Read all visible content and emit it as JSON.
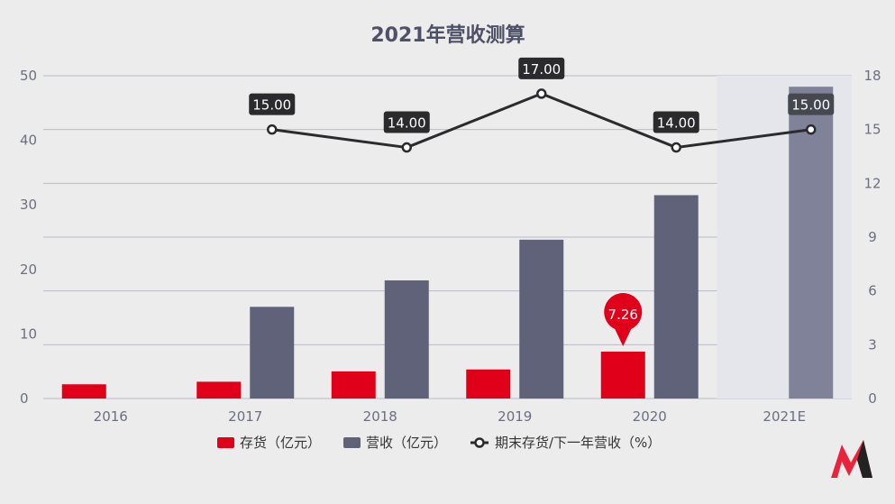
{
  "chart_data": {
    "type": "bar",
    "title": "2021年营收测算",
    "categories": [
      "2016",
      "2017",
      "2018",
      "2019",
      "2020",
      "2021E"
    ],
    "series": [
      {
        "name": "存货（亿元）",
        "type": "bar",
        "axis": "left",
        "color": "#e0001a",
        "values": [
          2.2,
          2.6,
          4.2,
          4.5,
          7.26,
          null
        ]
      },
      {
        "name": "营收（亿元）",
        "type": "bar",
        "axis": "left",
        "color": "#5f6279",
        "values": [
          null,
          14.2,
          18.3,
          24.6,
          31.5,
          48.3
        ]
      },
      {
        "name": "期末存货/下一年营收（%）",
        "type": "line",
        "axis": "right",
        "color": "#2b2b2e",
        "values": [
          null,
          15.0,
          14.0,
          17.0,
          14.0,
          15.0
        ],
        "labels": [
          null,
          "15.00",
          "14.00",
          "17.00",
          "14.00",
          "15.00"
        ]
      }
    ],
    "left_axis": {
      "min": 0,
      "max": 50,
      "ticks": [
        0,
        10,
        20,
        30,
        40,
        50
      ]
    },
    "right_axis": {
      "min": 0,
      "max": 18,
      "ticks": [
        0,
        3,
        6,
        9,
        12,
        15,
        18
      ]
    },
    "highlight": {
      "category": "2020",
      "series": "存货（亿元）",
      "label": "7.26"
    },
    "highlight_band": "2021E",
    "legend_position": "bottom",
    "grid": true,
    "colors": {
      "background": "#ececec",
      "grid": "#b9bcc6",
      "highlight_band": "#e4e6ec",
      "estimate_bar": "#7f8299",
      "label_bg": "#2b2b2e",
      "label_bg_estimate": "#464850"
    },
    "logo": "brand-logo"
  }
}
